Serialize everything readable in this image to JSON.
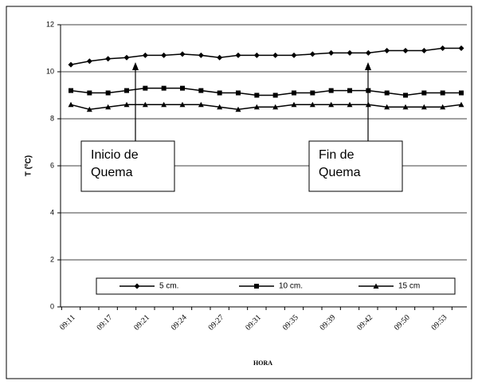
{
  "chart_data": {
    "type": "line",
    "x_label": "HORA",
    "y_label": "T (ºC)",
    "categories": [
      "09:11",
      null,
      "09:17",
      null,
      "09:21",
      null,
      "09:24",
      null,
      "09:27",
      null,
      "09:31",
      null,
      "09:35",
      null,
      "09:39",
      null,
      "09:42",
      null,
      "09:50",
      null,
      "09:53",
      null
    ],
    "series": [
      {
        "name": "5 cm.",
        "color": "#000000",
        "marker": "diamond",
        "values": [
          10.3,
          10.45,
          10.55,
          10.6,
          10.7,
          10.7,
          10.75,
          10.7,
          10.6,
          10.7,
          10.7,
          10.7,
          10.7,
          10.75,
          10.8,
          10.8,
          10.8,
          10.9,
          10.9,
          10.9,
          11.0,
          11.0
        ]
      },
      {
        "name": "10 cm.",
        "color": "#000000",
        "marker": "square",
        "values": [
          9.2,
          9.1,
          9.1,
          9.2,
          9.3,
          9.3,
          9.3,
          9.2,
          9.1,
          9.1,
          9.0,
          9.0,
          9.1,
          9.1,
          9.2,
          9.2,
          9.2,
          9.1,
          9.0,
          9.1,
          9.1,
          9.1
        ]
      },
      {
        "name": "15 cm",
        "color": "#000000",
        "marker": "triangle",
        "values": [
          8.6,
          8.4,
          8.5,
          8.6,
          8.6,
          8.6,
          8.6,
          8.6,
          8.5,
          8.4,
          8.5,
          8.5,
          8.6,
          8.6,
          8.6,
          8.6,
          8.6,
          8.5,
          8.5,
          8.5,
          8.5,
          8.6
        ]
      }
    ],
    "ylim": [
      0,
      12
    ],
    "yticks": [
      0,
      2,
      4,
      6,
      8,
      10,
      12
    ],
    "grid": true,
    "annotations": [
      [
        "Inicio de",
        "Quema"
      ],
      [
        "Fin de",
        "Quema"
      ]
    ]
  }
}
